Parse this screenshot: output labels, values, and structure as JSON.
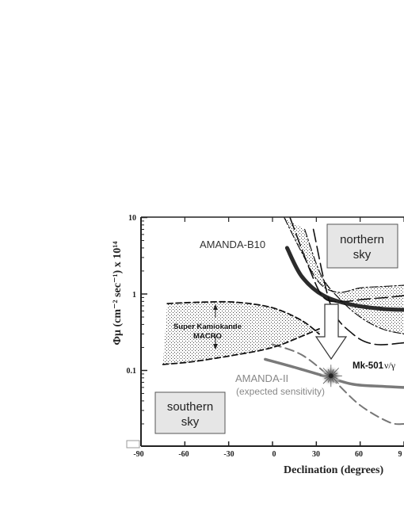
{
  "chart_data": {
    "type": "line",
    "ylabel": "Φμ (cm⁻² sec⁻¹) x 10¹⁴",
    "xlabel": "Declination (degrees)",
    "x_ticks": [
      "-90",
      "-60",
      "-30",
      "0",
      "30",
      "60",
      "9"
    ],
    "y_ticks": [
      "10",
      "1",
      "0.1"
    ],
    "xlim": [
      -90,
      90
    ],
    "ylim": [
      0.02,
      10
    ],
    "y_scale": "log",
    "series": [
      {
        "name": "AMANDA-B10",
        "style": "thick-solid-dark",
        "x": [
          10,
          20,
          35,
          55,
          75,
          90
        ],
        "y": [
          4.0,
          1.7,
          0.95,
          0.72,
          0.64,
          0.62
        ]
      },
      {
        "name": "AMANDA-II",
        "style": "solid-gray",
        "x": [
          -5,
          15,
          35,
          55,
          75,
          90
        ],
        "y": [
          0.14,
          0.11,
          0.085,
          0.066,
          0.062,
          0.06
        ]
      },
      {
        "name": "",
        "style": "dashed-gray",
        "x": [
          0,
          20,
          40,
          60,
          80,
          90
        ],
        "y": [
          0.22,
          0.16,
          0.08,
          0.035,
          0.021,
          0.02
        ]
      },
      {
        "name": "",
        "style": "dashed-black",
        "x": [
          -72,
          -50,
          -25,
          0,
          20,
          32
        ],
        "y": [
          0.75,
          0.78,
          0.78,
          0.66,
          0.45,
          0.3
        ]
      },
      {
        "name": "",
        "style": "dashed-black",
        "x": [
          -75,
          -55,
          -25,
          0,
          20,
          32
        ],
        "y": [
          0.12,
          0.13,
          0.16,
          0.2,
          0.28,
          0.35
        ]
      },
      {
        "name": "",
        "style": "dashdot-black",
        "x": [
          8,
          20,
          32,
          45,
          60,
          75,
          90
        ],
        "y": [
          10,
          3.5,
          1.4,
          1.05,
          1.2,
          1.25,
          1.3
        ]
      },
      {
        "name": "",
        "style": "dashdot-black",
        "x": [
          22,
          33,
          45,
          60,
          75,
          90
        ],
        "y": [
          7,
          1.8,
          0.9,
          0.5,
          0.35,
          0.3
        ]
      },
      {
        "name": "",
        "style": "longdash-black",
        "x": [
          12,
          25,
          35,
          48,
          62,
          78,
          90
        ],
        "y": [
          10,
          2.2,
          0.9,
          0.8,
          0.85,
          0.9,
          0.95
        ]
      },
      {
        "name": "",
        "style": "longdash-black",
        "x": [
          28,
          40,
          55,
          70,
          90
        ],
        "y": [
          7,
          0.7,
          0.3,
          0.22,
          0.23
        ]
      }
    ],
    "shaded_regions": [
      {
        "name": "Super Kamiokande MACRO",
        "upper_series": 3,
        "lower_series": 4
      },
      {
        "name": "AMANDA-B10 uncertainty",
        "upper_series": 5,
        "lower_series": 6
      }
    ],
    "annotations": {
      "amanda_b10": "AMANDA-B10",
      "sk_line1": "Super Kamiokande",
      "sk_line2": "MACRO",
      "amanda_ii_line1": "AMANDA-II",
      "amanda_ii_line2": "(expected sensitivity)",
      "mk501": "Mk-501",
      "mk501_suffix": "ν/γ",
      "northern_line1": "northern",
      "northern_line2": "sky",
      "southern_line1": "southern",
      "southern_line2": "sky"
    },
    "mk501_point": {
      "x": 40,
      "y": 0.085
    },
    "colors": {
      "dark": "#2b2b2b",
      "gray": "#7a7a7a",
      "box_fill": "#e6e6e6",
      "stipple": "#444444"
    }
  }
}
